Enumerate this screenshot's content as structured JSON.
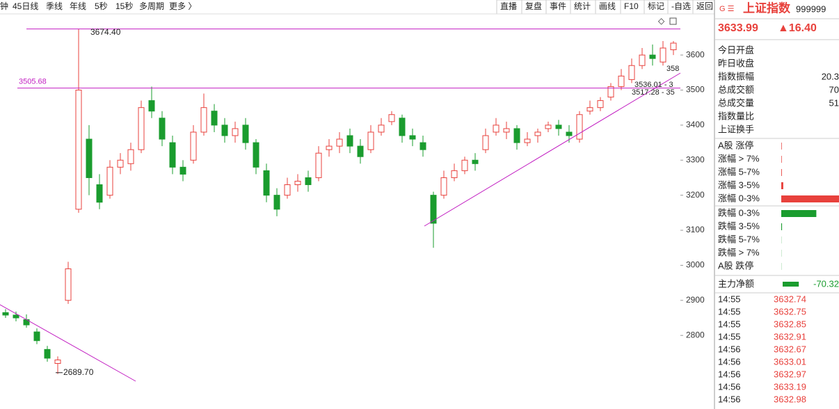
{
  "toolbar": {
    "left": [
      "钟",
      "45日线",
      "季线",
      "年线",
      "5秒",
      "15秒",
      "多周期",
      "更多 〉"
    ],
    "right": [
      "直播",
      "复盘",
      "事件",
      "统计",
      "画线",
      "F10",
      "标记",
      "-自选",
      "返回"
    ]
  },
  "chart_data": {
    "type": "candlestick",
    "series": [
      {
        "up_color": "#e8413c",
        "down_color": "#1a9c2e",
        "open": [
          2865,
          2858,
          2845,
          2810,
          2760,
          2720,
          2900,
          3160,
          3360,
          3230,
          3200,
          3280,
          3290,
          3330,
          3470,
          3420,
          3350,
          3280,
          3300,
          3380,
          3440,
          3400,
          3370,
          3400,
          3350,
          3270,
          3200,
          3200,
          3230,
          3250,
          3250,
          3330,
          3340,
          3370,
          3340,
          3330,
          3380,
          3410,
          3420,
          3370,
          3350,
          3200,
          3200,
          3250,
          3270,
          3300,
          3330,
          3380,
          3380,
          3390,
          3350,
          3370,
          3390,
          3400,
          3380,
          3360,
          3440,
          3450,
          3480,
          3510,
          3530,
          3570,
          3600,
          3580,
          3615
        ],
        "high": [
          2875,
          2868,
          2860,
          2820,
          2770,
          2740,
          3010,
          3674.4,
          3400,
          3260,
          3300,
          3320,
          3350,
          3470,
          3510,
          3440,
          3370,
          3300,
          3400,
          3490,
          3460,
          3420,
          3410,
          3420,
          3360,
          3290,
          3220,
          3250,
          3260,
          3270,
          3340,
          3360,
          3380,
          3390,
          3360,
          3400,
          3420,
          3440,
          3430,
          3390,
          3370,
          3210,
          3270,
          3290,
          3310,
          3320,
          3390,
          3420,
          3410,
          3400,
          3380,
          3390,
          3410,
          3415,
          3400,
          3440,
          3470,
          3480,
          3520,
          3560,
          3590,
          3620,
          3630,
          3640,
          3640
        ],
        "low": [
          2850,
          2840,
          2822,
          2775,
          2725,
          2689.7,
          2890,
          3150,
          3200,
          3160,
          3190,
          3260,
          3270,
          3320,
          3420,
          3340,
          3260,
          3240,
          3290,
          3370,
          3380,
          3350,
          3350,
          3330,
          3260,
          3180,
          3140,
          3190,
          3210,
          3210,
          3240,
          3310,
          3320,
          3320,
          3290,
          3320,
          3370,
          3400,
          3350,
          3340,
          3310,
          3050,
          3190,
          3240,
          3260,
          3270,
          3320,
          3370,
          3360,
          3330,
          3340,
          3350,
          3380,
          3370,
          3350,
          3350,
          3430,
          3440,
          3470,
          3500,
          3520,
          3560,
          3570,
          3570,
          3600
        ],
        "close": [
          2858,
          2850,
          2830,
          2785,
          2735,
          2730,
          2990,
          3500,
          3250,
          3180,
          3280,
          3300,
          3330,
          3450,
          3440,
          3360,
          3280,
          3260,
          3380,
          3450,
          3400,
          3370,
          3390,
          3350,
          3280,
          3200,
          3160,
          3230,
          3240,
          3230,
          3320,
          3340,
          3360,
          3340,
          3310,
          3380,
          3400,
          3430,
          3370,
          3360,
          3330,
          3120,
          3250,
          3270,
          3300,
          3290,
          3370,
          3400,
          3390,
          3350,
          3360,
          3380,
          3400,
          3390,
          3370,
          3430,
          3450,
          3470,
          3510,
          3540,
          3570,
          3600,
          3590,
          3620,
          3634
        ]
      }
    ],
    "ylim": [
      2590,
      3757
    ],
    "yticks": [
      2800,
      2900,
      3000,
      3100,
      3200,
      3300,
      3400,
      3500,
      3600
    ],
    "hlines": [
      {
        "value": 3674.4,
        "label": "3674.40"
      },
      {
        "value": 3505.68,
        "label": "3505.68"
      }
    ],
    "low_mark": {
      "value": 2689.7,
      "label": "2689.70"
    },
    "annotations": [
      "3536.01 - 3",
      "3517.28 - 35",
      "358"
    ]
  },
  "panel": {
    "name": "上证指数",
    "code": "999999",
    "price": "3633.99",
    "change": "▲16.40",
    "info": [
      [
        "今日开盘",
        ""
      ],
      [
        "昨日收盘",
        ""
      ],
      [
        "指数振幅",
        "20.3"
      ],
      [
        "总成交额",
        "70"
      ],
      [
        "总成交量",
        "51"
      ],
      [
        "指数量比",
        ""
      ],
      [
        "上证换手",
        ""
      ]
    ],
    "dist": {
      "labels": [
        "A股 涨停",
        "涨幅 > 7%",
        "涨幅 5-7%",
        "涨幅 3-5%",
        "涨幅 0-3%",
        "跌幅 0-3%",
        "跌幅 3-5%",
        "跌幅 5-7%",
        "跌幅 > 7%",
        "A股 跌停"
      ],
      "counts": [
        10,
        10,
        12,
        40,
        1200,
        700,
        15,
        3,
        3,
        3
      ]
    },
    "net": {
      "label": "主力净额",
      "value": -70.32
    },
    "ticks": {
      "times": [
        "14:55",
        "14:55",
        "14:55",
        "14:55",
        "14:56",
        "14:56",
        "14:56",
        "14:56",
        "14:56"
      ],
      "prices": [
        "3632.74",
        "3632.75",
        "3632.85",
        "3632.91",
        "3632.67",
        "3633.01",
        "3632.97",
        "3633.19",
        "3632.98"
      ]
    }
  }
}
